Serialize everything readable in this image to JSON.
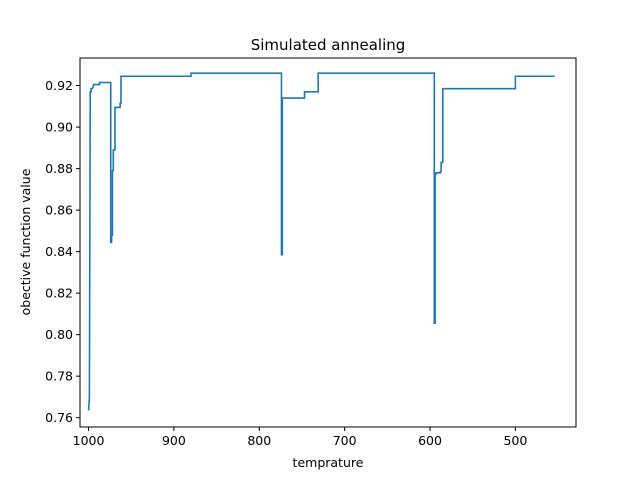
{
  "chart_data": {
    "type": "line",
    "title": "Simulated annealing",
    "xlabel": "temprature",
    "ylabel": "obective function value",
    "x_inverted": true,
    "xlim": [
      1010,
      429
    ],
    "ylim": [
      0.7555,
      0.9333
    ],
    "grid": false,
    "legend": "none",
    "series_color": "#1f77b4",
    "x_ticks": [
      1000,
      900,
      800,
      700,
      600,
      500
    ],
    "x_tick_labels": [
      "1000",
      "900",
      "800",
      "700",
      "600",
      "500"
    ],
    "y_ticks": [
      0.76,
      0.78,
      0.8,
      0.82,
      0.84,
      0.86,
      0.88,
      0.9,
      0.92
    ],
    "y_tick_labels": [
      "0.76",
      "0.78",
      "0.80",
      "0.82",
      "0.84",
      "0.86",
      "0.88",
      "0.90",
      "0.92"
    ],
    "series": [
      {
        "x": [
          1000,
          1000,
          999,
          999,
          998,
          997,
          997,
          996,
          995,
          995,
          994,
          992,
          992,
          987,
          987,
          980,
          980,
          974,
          974,
          973,
          973,
          972,
          972,
          971,
          971,
          969,
          969,
          963,
          963,
          962,
          962,
          880,
          880,
          774,
          774,
          773,
          773,
          771,
          771,
          747,
          747,
          731,
          731,
          595,
          595,
          594,
          594,
          593,
          593,
          588,
          588,
          587,
          587,
          585,
          585,
          500,
          500,
          454
        ],
        "y": [
          0.7635,
          0.7635,
          0.7695,
          0.7695,
          0.917,
          0.917,
          0.9185,
          0.9185,
          0.919,
          0.919,
          0.9205,
          0.9205,
          0.9205,
          0.9205,
          0.9215,
          0.9215,
          0.9215,
          0.9215,
          0.8445,
          0.8445,
          0.848,
          0.848,
          0.879,
          0.879,
          0.889,
          0.889,
          0.9095,
          0.9095,
          0.9115,
          0.9115,
          0.9245,
          0.9245,
          0.926,
          0.926,
          0.8385,
          0.8385,
          0.914,
          0.914,
          0.914,
          0.914,
          0.917,
          0.917,
          0.926,
          0.926,
          0.8055,
          0.8055,
          0.8775,
          0.8775,
          0.878,
          0.878,
          0.8785,
          0.8785,
          0.883,
          0.883,
          0.9185,
          0.9185,
          0.9245,
          0.9245
        ]
      }
    ]
  }
}
